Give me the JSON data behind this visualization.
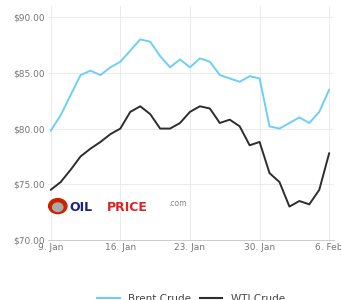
{
  "brent_x": [
    0,
    1,
    2,
    3,
    4,
    5,
    6,
    7,
    8,
    9,
    10,
    11,
    12,
    13,
    14,
    15,
    16,
    17,
    18,
    19,
    20,
    21,
    22,
    23,
    24,
    25,
    26,
    27,
    28
  ],
  "brent_y": [
    79.8,
    81.2,
    83.0,
    84.8,
    85.2,
    84.8,
    85.5,
    86.0,
    87.0,
    88.0,
    87.8,
    86.5,
    85.5,
    86.2,
    85.5,
    86.3,
    86.0,
    84.8,
    84.5,
    84.2,
    84.7,
    84.5,
    80.2,
    80.0,
    80.5,
    81.0,
    80.5,
    81.5,
    83.5
  ],
  "wti_x": [
    0,
    1,
    2,
    3,
    4,
    5,
    6,
    7,
    8,
    9,
    10,
    11,
    12,
    13,
    14,
    15,
    16,
    17,
    18,
    19,
    20,
    21,
    22,
    23,
    24,
    25,
    26,
    27,
    28
  ],
  "wti_y": [
    74.5,
    75.2,
    76.3,
    77.5,
    78.2,
    78.8,
    79.5,
    80.0,
    81.5,
    82.0,
    81.3,
    80.0,
    80.0,
    80.5,
    81.5,
    82.0,
    81.8,
    80.5,
    80.8,
    80.2,
    78.5,
    78.8,
    76.0,
    75.2,
    73.0,
    73.5,
    73.2,
    74.5,
    77.8
  ],
  "xtick_positions": [
    0,
    7,
    14,
    21,
    28
  ],
  "xtick_labels": [
    "9. Jan",
    "16. Jan",
    "23. Jan",
    "30. Jan",
    "6. Feb"
  ],
  "ytick_labels": [
    "$70.00",
    "$75.00",
    "$80.00",
    "$85.00",
    "$90.00"
  ],
  "ytick_values": [
    70,
    75,
    80,
    85,
    90
  ],
  "ylim": [
    70,
    91
  ],
  "xlim": [
    -0.3,
    28.5
  ],
  "brent_color": "#6dcff6",
  "wti_color": "#2d2d2d",
  "grid_color": "#e8e8e8",
  "bg_color": "#ffffff",
  "legend_brent": "Brent Crude",
  "legend_wti": "WTI Crude"
}
